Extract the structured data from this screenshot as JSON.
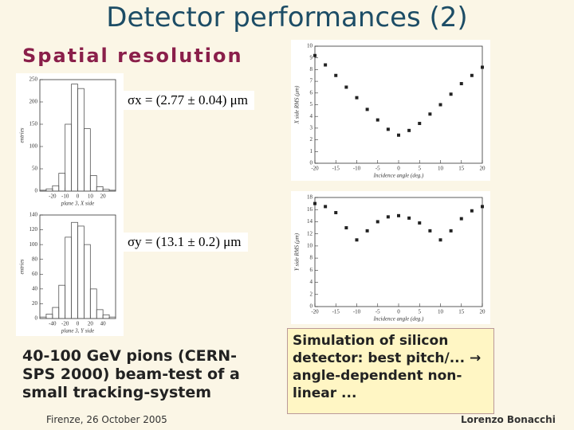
{
  "slide": {
    "title": "Detector performances (2)",
    "heading": "Spatial resolution",
    "sigma_x": "σx = (2.77 ± 0.04) μm",
    "sigma_y": "σy = (13.1 ± 0.2) μm",
    "description": "40-100 GeV pions (CERN-SPS 2000) beam-test of a small tracking-system",
    "simulation_note": "Simulation of silicon detector: best pitch/... → angle-dependent non-linear ...",
    "footer_left": "Firenze, 26 October 2005",
    "footer_right": "Lorenzo Bonacchi"
  },
  "chart_data": [
    {
      "type": "histogram",
      "xlabel": "plane 3, X side",
      "ylabel": "entries",
      "bins": [
        -30,
        -25,
        -20,
        -15,
        -10,
        -5,
        0,
        5,
        10,
        15,
        20,
        25,
        30
      ],
      "values": [
        2,
        5,
        12,
        40,
        150,
        240,
        230,
        140,
        35,
        10,
        4,
        2
      ],
      "xlim": [
        -30,
        30
      ],
      "xticks": [
        -20,
        -10,
        0,
        10,
        20
      ],
      "ylim": [
        0,
        250
      ],
      "yticks": [
        0,
        50,
        100,
        150,
        200,
        250
      ],
      "color": "#555555"
    },
    {
      "type": "histogram",
      "xlabel": "plane 3, Y side",
      "ylabel": "entries",
      "bins": [
        -60,
        -50,
        -40,
        -30,
        -20,
        -10,
        0,
        10,
        20,
        30,
        40,
        50,
        60
      ],
      "values": [
        2,
        6,
        15,
        45,
        110,
        130,
        125,
        100,
        40,
        12,
        5,
        2
      ],
      "xlim": [
        -60,
        60
      ],
      "xticks": [
        -40,
        -20,
        0,
        20,
        40
      ],
      "ylim": [
        0,
        140
      ],
      "yticks": [
        0,
        20,
        40,
        60,
        80,
        100,
        120,
        140
      ],
      "color": "#555555"
    },
    {
      "type": "scatter",
      "xlabel": "Incidence angle (deg.)",
      "ylabel": "X side RMS (μm)",
      "x": [
        -20,
        -17.5,
        -15,
        -12.5,
        -10,
        -7.5,
        -5,
        -2.5,
        0,
        2.5,
        5,
        7.5,
        10,
        12.5,
        15,
        17.5,
        20
      ],
      "values": [
        9.2,
        8.4,
        7.5,
        6.5,
        5.6,
        4.6,
        3.7,
        2.9,
        2.4,
        2.8,
        3.4,
        4.2,
        5,
        5.9,
        6.8,
        7.5,
        8.2
      ],
      "xlim": [
        -20,
        20
      ],
      "xticks": [
        -20,
        -15,
        -10,
        -5,
        0,
        5,
        10,
        15,
        20
      ],
      "ylim": [
        0,
        10
      ],
      "yticks": [
        0,
        1,
        2,
        3,
        4,
        5,
        6,
        7,
        8,
        9,
        10
      ],
      "color": "#222222"
    },
    {
      "type": "scatter",
      "xlabel": "Incidence angle (deg.)",
      "ylabel": "Y side RMS (μm)",
      "x": [
        -20,
        -17.5,
        -15,
        -12.5,
        -10,
        -7.5,
        -5,
        -2.5,
        0,
        2.5,
        5,
        7.5,
        10,
        12.5,
        15,
        17.5,
        20
      ],
      "values": [
        17,
        16.5,
        15.5,
        13,
        11,
        12.5,
        14,
        14.8,
        15,
        14.6,
        13.8,
        12.5,
        11,
        12.5,
        14.5,
        15.8,
        16.5
      ],
      "xlim": [
        -20,
        20
      ],
      "xticks": [
        -20,
        -15,
        -10,
        -5,
        0,
        5,
        10,
        15,
        20
      ],
      "ylim": [
        0,
        18
      ],
      "yticks": [
        0,
        2,
        4,
        6,
        8,
        10,
        12,
        14,
        16,
        18
      ],
      "color": "#222222"
    }
  ]
}
